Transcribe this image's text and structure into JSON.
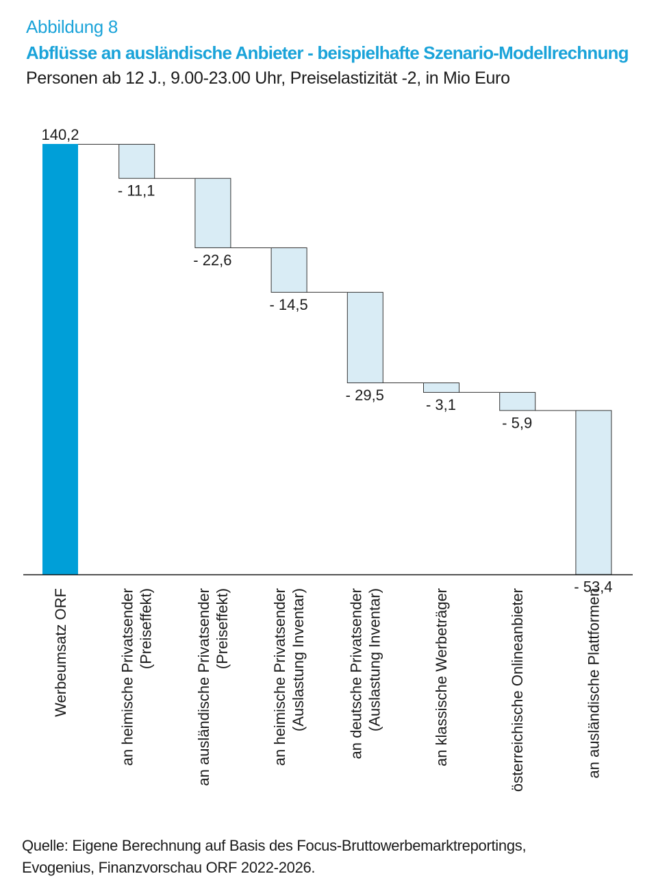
{
  "header": {
    "figure_label": "Abbildung 8",
    "title": "Abflüsse an ausländische Anbieter - beispielhafte Szenario-Modellrechnung",
    "subtitle": "Personen ab 12 J., 9.00-23.00 Uhr, Preiselastizität -2, in Mio Euro"
  },
  "chart_data": {
    "type": "bar",
    "subtype": "waterfall",
    "categories": [
      [
        "Werbeumsatz ORF"
      ],
      [
        "an heimische Privatsender",
        "(Preiseffekt)"
      ],
      [
        "an ausländische Privatsender",
        "(Preiseffekt)"
      ],
      [
        "an heimische Privatsender",
        "(Auslastung Inventar)"
      ],
      [
        "an deutsche Privatsender",
        "(Auslastung Inventar)"
      ],
      [
        "an klassische Werbeträger"
      ],
      [
        "österreichische Onlineanbieter"
      ],
      [
        "an ausländische Plattformen"
      ]
    ],
    "values": [
      140.2,
      -11.1,
      -22.6,
      -14.5,
      -29.5,
      -3.1,
      -5.9,
      -53.4
    ],
    "value_labels": [
      "140,2",
      "-  11,1",
      "-  22,6",
      "-  14,5",
      "-  29,5",
      "-  3,1",
      "-  5,9",
      "-  53,4"
    ],
    "ylim": [
      0,
      140.2
    ],
    "grid": false,
    "legend": "none",
    "colors": {
      "total": "#009fd8",
      "step": "#d9ecf5",
      "step_border": "#333333",
      "axis": "#1a1a1a"
    }
  },
  "source": {
    "line1": "Quelle: Eigene Berechnung auf Basis des Focus-Bruttowerbemarktreportings,",
    "line2": "Evogenius, Finanzvorschau ORF 2022-2026."
  }
}
